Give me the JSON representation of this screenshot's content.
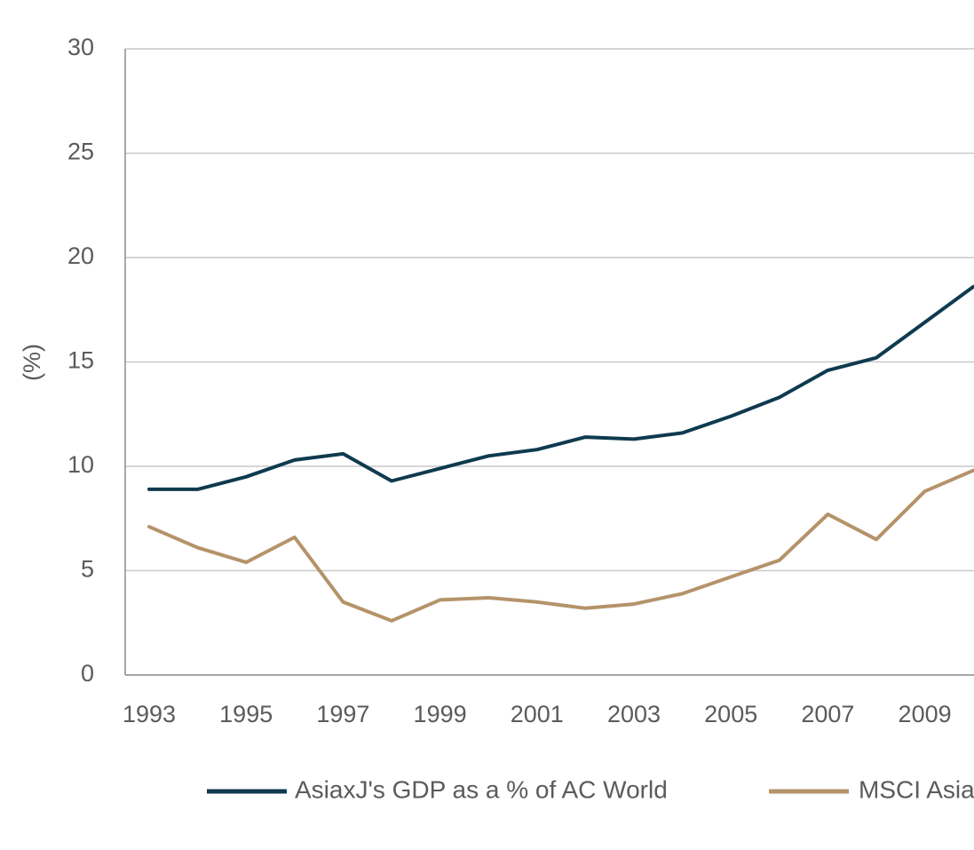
{
  "chart_data": {
    "type": "line",
    "title": "",
    "xlabel": "",
    "ylabel": "(%)",
    "ylim": [
      0,
      30
    ],
    "yticks": [
      "0",
      "5",
      "10",
      "15",
      "20",
      "25",
      "30"
    ],
    "xlim": [
      1993,
      2010
    ],
    "xticks": [
      "1993",
      "1995",
      "1997",
      "1999",
      "2001",
      "2003",
      "2005",
      "2007",
      "2009"
    ],
    "grid": "horizontal",
    "legend_position": "bottom",
    "x": [
      1993,
      1994,
      1995,
      1996,
      1997,
      1998,
      1999,
      2000,
      2001,
      2002,
      2003,
      2004,
      2005,
      2006,
      2007,
      2008,
      2009,
      2010
    ],
    "series": [
      {
        "name": "AsiaxJ's GDP as a % of AC World",
        "color": "#0f3a4f",
        "values": [
          8.9,
          8.9,
          9.5,
          10.3,
          10.6,
          9.3,
          9.9,
          10.5,
          10.8,
          11.4,
          11.3,
          11.6,
          12.4,
          13.3,
          14.6,
          15.2,
          16.9,
          18.6
        ]
      },
      {
        "name": "MSCI Asia",
        "color": "#b5936a",
        "values": [
          7.1,
          6.1,
          5.4,
          6.6,
          3.5,
          2.6,
          3.6,
          3.7,
          3.5,
          3.2,
          3.4,
          3.9,
          4.7,
          5.5,
          7.7,
          6.5,
          8.8,
          9.8
        ]
      }
    ]
  }
}
